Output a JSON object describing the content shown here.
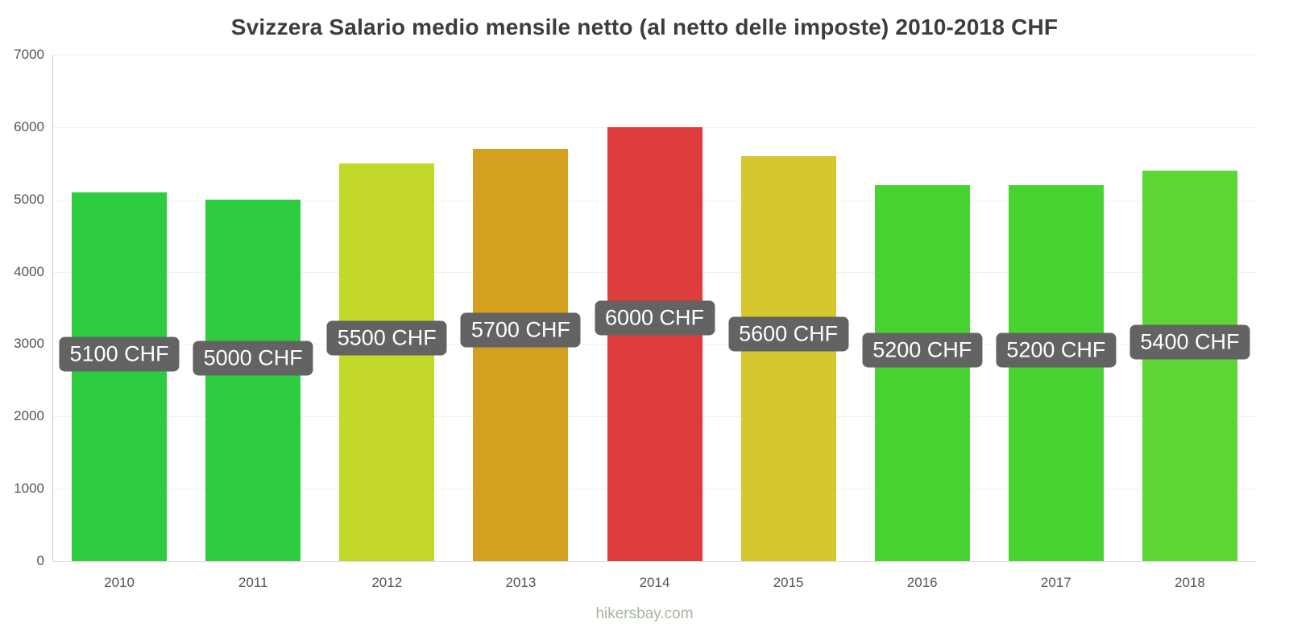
{
  "title": "Svizzera Salario medio mensile netto (al netto delle imposte) 2010-2018 CHF",
  "footer": "hikersbay.com",
  "chart_data": {
    "type": "bar",
    "title": "Svizzera Salario medio mensile netto (al netto delle imposte) 2010-2018 CHF",
    "categories": [
      "2010",
      "2011",
      "2012",
      "2013",
      "2014",
      "2015",
      "2016",
      "2017",
      "2018"
    ],
    "values": [
      5100,
      5000,
      5500,
      5700,
      6000,
      5600,
      5200,
      5200,
      5400
    ],
    "labels": [
      "5100 CHF",
      "5000 CHF",
      "5500 CHF",
      "5700 CHF",
      "6000 CHF",
      "5600 CHF",
      "5200 CHF",
      "5200 CHF",
      "5400 CHF"
    ],
    "bar_colors": [
      "#2ecc40",
      "#2ecc40",
      "#c3d829",
      "#d4a01f",
      "#de3b3b",
      "#d6c72e",
      "#48d430",
      "#48d430",
      "#5ed636"
    ],
    "xlabel": "",
    "ylabel": "",
    "ylim": [
      0,
      7000
    ],
    "yticks": [
      0,
      1000,
      2000,
      3000,
      4000,
      5000,
      6000,
      7000
    ],
    "grid": true,
    "legend": "none",
    "colors": {
      "label_bg": "#636363",
      "label_text": "#ffffff",
      "axis": "#cccccc",
      "baseline": "#e0e0e0",
      "grid_line": "#f2f2f2",
      "tick_text": "#555555",
      "title_text": "#3d3d3d",
      "footer_text": "#a7b5a1"
    }
  }
}
